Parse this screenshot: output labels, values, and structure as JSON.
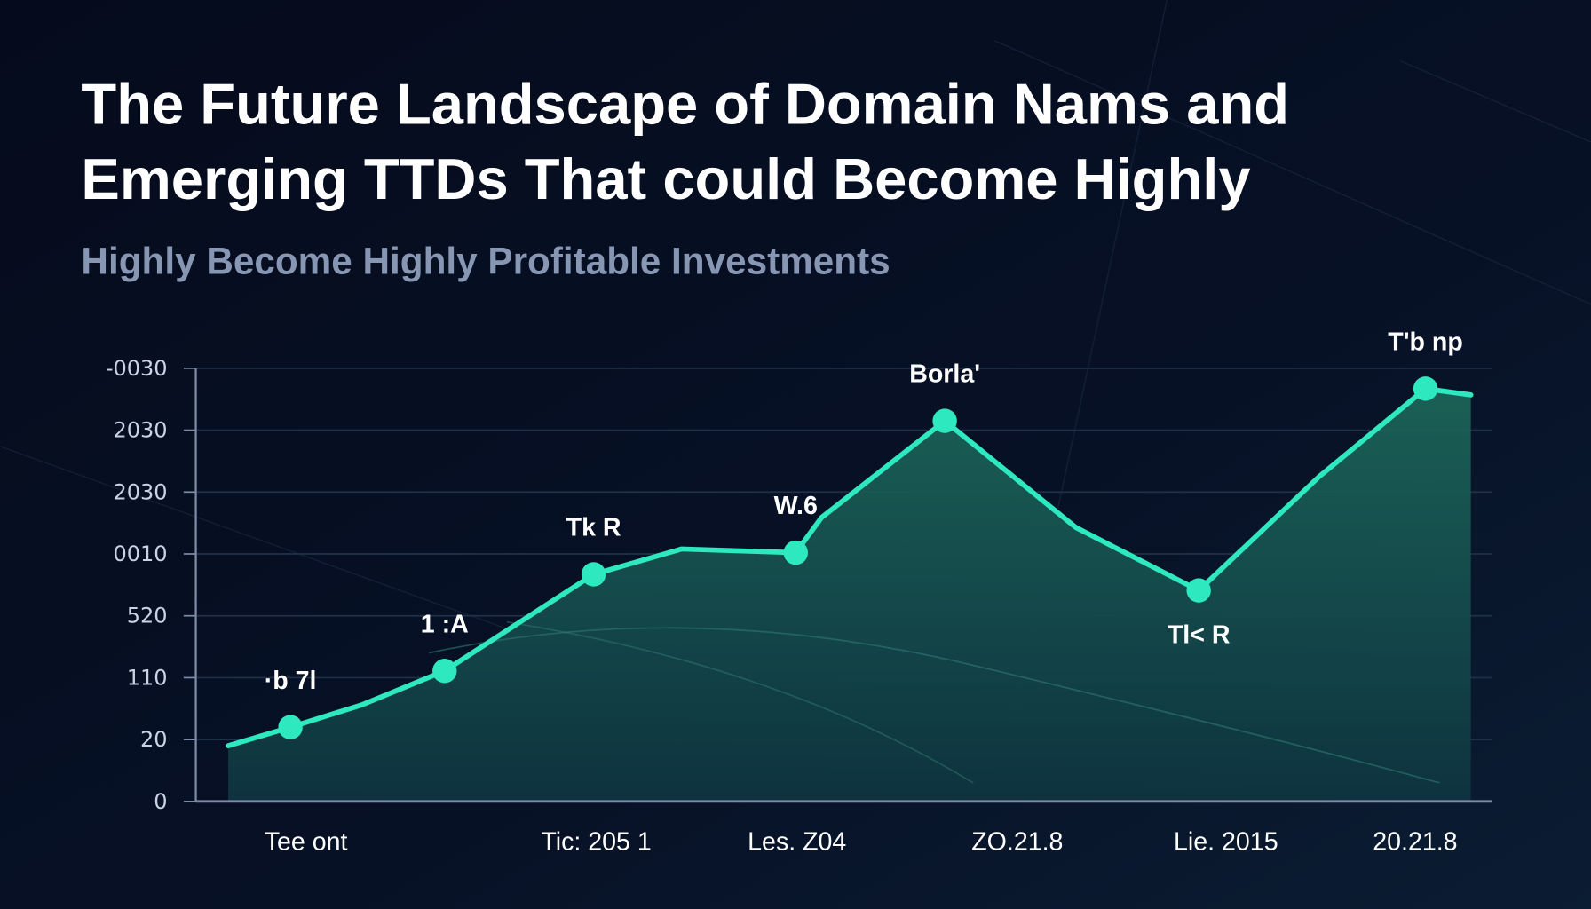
{
  "title_lines": [
    "The Future Landscape of Domain Nams and",
    "Emerging TTDs That could Become Highly"
  ],
  "subtitle": "Highly Become Highly Profitable Investments",
  "colors": {
    "background": "#060d1f",
    "line": "#2ee8c0",
    "area": "#1a5a52",
    "grid": "#1f3049",
    "axis": "#7d8aa6"
  },
  "chart_data": {
    "type": "area",
    "title": "The Future Landscape of Domain Nams and Emerging TTDs That could Become Highly",
    "subtitle": "Highly Become Highly Profitable Investments",
    "xlim": [
      0,
      10
    ],
    "ylim": [
      0,
      7
    ],
    "grid": true,
    "y_ticks": [
      {
        "value": 7,
        "label": "-0030"
      },
      {
        "value": 6,
        "label": "2030"
      },
      {
        "value": 5,
        "label": "2030"
      },
      {
        "value": 4,
        "label": "0010"
      },
      {
        "value": 3,
        "label": "520"
      },
      {
        "value": 2,
        "label": "110"
      },
      {
        "value": 1,
        "label": "20"
      },
      {
        "value": 0,
        "label": "0"
      }
    ],
    "x_ticks": [
      {
        "value": 0.85,
        "label": "Tee ont"
      },
      {
        "value": 3.09,
        "label": "Tic: 205 1"
      },
      {
        "value": 4.64,
        "label": "Les. Z04"
      },
      {
        "value": 6.34,
        "label": "ZO.21.8"
      },
      {
        "value": 7.95,
        "label": "Lie. 2015"
      },
      {
        "value": 9.41,
        "label": "20.21.8"
      }
    ],
    "series": [
      {
        "points": [
          {
            "x": 0.25,
            "y": 0.9
          },
          {
            "x": 0.73,
            "y": 1.2,
            "marker": true,
            "label": "·b 7l",
            "label_pos": "above"
          },
          {
            "x": 1.28,
            "y": 1.56
          },
          {
            "x": 1.92,
            "y": 2.11,
            "marker": true,
            "label": "1 :A",
            "label_pos": "above"
          },
          {
            "x": 3.07,
            "y": 3.67,
            "marker": true,
            "label": "Tk R",
            "label_pos": "above"
          },
          {
            "x": 3.75,
            "y": 4.08
          },
          {
            "x": 4.63,
            "y": 4.02,
            "marker": true,
            "label": "W.6",
            "label_pos": "above"
          },
          {
            "x": 4.83,
            "y": 4.59
          },
          {
            "x": 5.78,
            "y": 6.15,
            "marker": true,
            "label": "Borla'",
            "label_pos": "above"
          },
          {
            "x": 6.79,
            "y": 4.43
          },
          {
            "x": 7.74,
            "y": 3.41,
            "marker": true,
            "label": "Tl< R",
            "label_pos": "below"
          },
          {
            "x": 8.67,
            "y": 5.25
          },
          {
            "x": 9.49,
            "y": 6.67,
            "marker": true,
            "label": "T'b np",
            "label_pos": "above"
          },
          {
            "x": 9.84,
            "y": 6.57
          }
        ]
      }
    ]
  }
}
